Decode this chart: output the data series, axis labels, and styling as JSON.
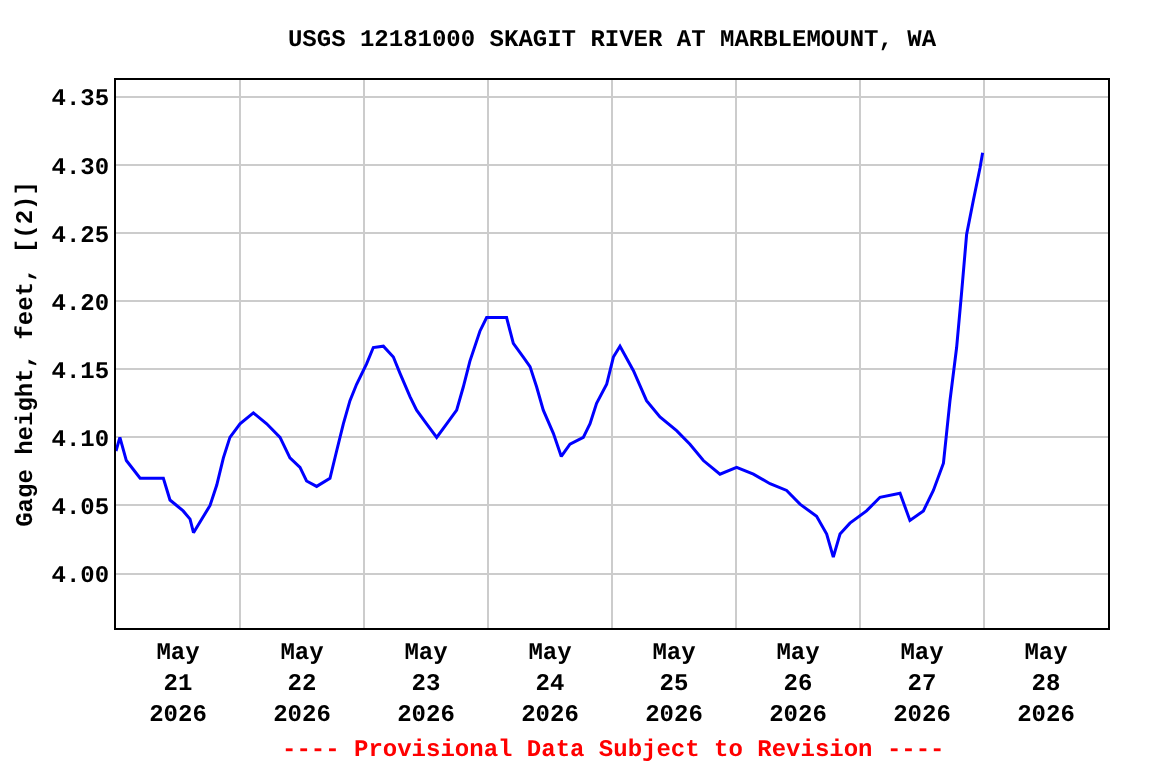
{
  "chart_data": {
    "type": "line",
    "title": "USGS 12181000 SKAGIT RIVER AT MARBLEMOUNT, WA",
    "ylabel": "Gage height, feet, [(2)]",
    "annotations": [
      "---- Provisional Data Subject to Revision ----"
    ],
    "x": [
      "2026-05-21T00:00",
      "2026-05-21T00:45",
      "2026-05-21T02:00",
      "2026-05-21T04:40",
      "2026-05-21T09:10",
      "2026-05-21T10:27",
      "2026-05-21T13:00",
      "2026-05-21T14:20",
      "2026-05-21T15:00",
      "2026-05-21T18:12",
      "2026-05-21T19:30",
      "2026-05-21T20:47",
      "2026-05-21T22:03",
      "2026-05-22T00:00",
      "2026-05-22T02:35",
      "2026-05-22T05:10",
      "2026-05-22T07:45",
      "2026-05-22T09:40",
      "2026-05-22T11:37",
      "2026-05-22T12:53",
      "2026-05-22T14:50",
      "2026-05-22T17:25",
      "2026-05-22T18:42",
      "2026-05-22T20:00",
      "2026-05-22T21:17",
      "2026-05-22T22:34",
      "2026-05-23T00:30",
      "2026-05-23T01:48",
      "2026-05-23T03:45",
      "2026-05-23T05:41",
      "2026-05-23T06:58",
      "2026-05-23T08:54",
      "2026-05-23T10:11",
      "2026-05-23T12:07",
      "2026-05-23T14:04",
      "2026-05-23T16:00",
      "2026-05-23T17:56",
      "2026-05-23T19:13",
      "2026-05-23T20:30",
      "2026-05-23T22:26",
      "2026-05-23T23:44",
      "2026-05-24T03:36",
      "2026-05-24T04:54",
      "2026-05-24T06:50",
      "2026-05-24T08:08",
      "2026-05-24T09:25",
      "2026-05-24T10:42",
      "2026-05-24T12:39",
      "2026-05-24T14:11",
      "2026-05-24T15:52",
      "2026-05-24T18:27",
      "2026-05-24T19:45",
      "2026-05-24T21:01",
      "2026-05-24T22:58",
      "2026-05-25T00:16",
      "2026-05-25T01:33",
      "2026-05-25T04:09",
      "2026-05-25T06:41",
      "2026-05-25T09:17",
      "2026-05-25T12:30",
      "2026-05-25T15:05",
      "2026-05-25T17:41",
      "2026-05-25T20:54",
      "2026-05-26T00:07",
      "2026-05-26T03:22",
      "2026-05-26T06:35",
      "2026-05-26T09:48",
      "2026-05-26T12:23",
      "2026-05-26T15:36",
      "2026-05-26T17:33",
      "2026-05-26T18:50",
      "2026-05-26T20:08",
      "2026-05-26T22:03",
      "2026-05-27T01:16",
      "2026-05-27T03:52",
      "2026-05-27T07:45",
      "2026-05-27T09:40",
      "2026-05-27T12:16",
      "2026-05-27T14:12",
      "2026-05-27T16:09",
      "2026-05-27T17:25",
      "2026-05-27T18:42",
      "2026-05-27T19:38",
      "2026-05-27T20:38",
      "2026-05-27T21:56",
      "2026-05-27T23:14",
      "2026-05-27T23:44"
    ],
    "series": [
      {
        "color": "#0000ff",
        "values": [
          4.09,
          4.1,
          4.083,
          4.07,
          4.07,
          4.054,
          4.046,
          4.04,
          4.03,
          4.05,
          4.065,
          4.085,
          4.1,
          4.11,
          4.118,
          4.11,
          4.1,
          4.085,
          4.078,
          4.068,
          4.064,
          4.07,
          4.09,
          4.11,
          4.127,
          4.139,
          4.154,
          4.166,
          4.167,
          4.159,
          4.147,
          4.13,
          4.12,
          4.11,
          4.1,
          4.11,
          4.12,
          4.137,
          4.156,
          4.178,
          4.188,
          4.188,
          4.169,
          4.159,
          4.152,
          4.137,
          4.12,
          4.103,
          4.086,
          4.095,
          4.1,
          4.11,
          4.125,
          4.139,
          4.159,
          4.167,
          4.149,
          4.127,
          4.115,
          4.105,
          4.095,
          4.083,
          4.073,
          4.078,
          4.073,
          4.066,
          4.061,
          4.051,
          4.042,
          4.029,
          4.012,
          4.029,
          4.037,
          4.046,
          4.056,
          4.059,
          4.039,
          4.046,
          4.061,
          4.081,
          4.127,
          4.166,
          4.205,
          4.249,
          4.274,
          4.298,
          4.309
        ]
      }
    ],
    "xlim": [
      "2026-05-21T00:00",
      "2026-05-29T00:00"
    ],
    "xticks": [
      {
        "value": "2026-05-21T12:00",
        "label": "May\n21\n2026"
      },
      {
        "value": "2026-05-22T12:00",
        "label": "May\n22\n2026"
      },
      {
        "value": "2026-05-23T12:00",
        "label": "May\n23\n2026"
      },
      {
        "value": "2026-05-24T12:00",
        "label": "May\n24\n2026"
      },
      {
        "value": "2026-05-25T12:00",
        "label": "May\n25\n2026"
      },
      {
        "value": "2026-05-26T12:00",
        "label": "May\n26\n2026"
      },
      {
        "value": "2026-05-27T12:00",
        "label": "May\n27\n2026"
      },
      {
        "value": "2026-05-28T12:00",
        "label": "May\n28\n2026"
      },
      {
        "value": "2026-05-22T00:00",
        "label": null
      },
      {
        "value": "2026-05-23T00:00",
        "label": null
      },
      {
        "value": "2026-05-24T00:00",
        "label": null
      },
      {
        "value": "2026-05-25T00:00",
        "label": null
      },
      {
        "value": "2026-05-26T00:00",
        "label": null
      },
      {
        "value": "2026-05-27T00:00",
        "label": null
      },
      {
        "value": "2026-05-28T00:00",
        "label": null
      }
    ],
    "ylim": [
      3.96,
      4.3625
    ],
    "yticks": [
      {
        "value": 4.0,
        "label": "4.00"
      },
      4.05,
      {
        "value": 4.1,
        "label": "4.10"
      },
      4.15,
      {
        "value": 4.2,
        "label": "4.20"
      },
      4.25,
      {
        "value": 4.3,
        "label": "4.30"
      },
      4.35
    ],
    "grid": true,
    "marker": "none",
    "line_style": "solid"
  }
}
